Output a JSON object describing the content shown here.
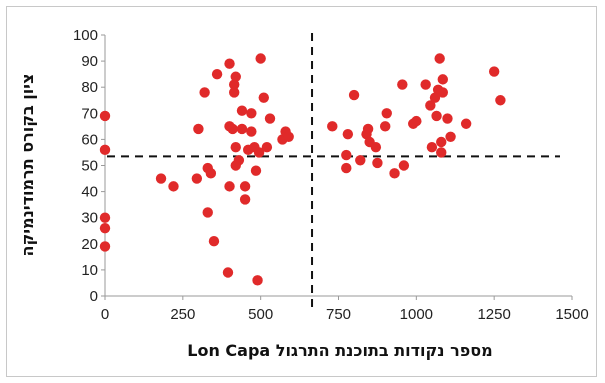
{
  "chart_data": {
    "type": "scatter",
    "title": "",
    "xlabel": "מספר נקודות בתוכנת התרגול Lon Capa",
    "ylabel": "ציון בקורס תרמודינמיקה",
    "xlim": [
      0,
      1500
    ],
    "ylim": [
      0,
      100
    ],
    "x_ticks": [
      "0",
      "250",
      "500",
      "750",
      "1000",
      "1250",
      "1500"
    ],
    "y_ticks": [
      "0",
      "10",
      "20",
      "30",
      "40",
      "50",
      "60",
      "70",
      "80",
      "90",
      "100"
    ],
    "grid": false,
    "legend": "none",
    "marker_color": "#e02a2a",
    "reference_lines": [
      {
        "orientation": "vertical",
        "x": 665
      },
      {
        "orientation": "horizontal",
        "y": 53.5
      }
    ],
    "points": [
      {
        "x": 0,
        "y": 69
      },
      {
        "x": 0,
        "y": 56
      },
      {
        "x": 0,
        "y": 30
      },
      {
        "x": 0,
        "y": 26
      },
      {
        "x": 0,
        "y": 19
      },
      {
        "x": 180,
        "y": 45
      },
      {
        "x": 220,
        "y": 42
      },
      {
        "x": 295,
        "y": 45
      },
      {
        "x": 300,
        "y": 64
      },
      {
        "x": 320,
        "y": 78
      },
      {
        "x": 330,
        "y": 32
      },
      {
        "x": 330,
        "y": 49
      },
      {
        "x": 340,
        "y": 47
      },
      {
        "x": 350,
        "y": 21
      },
      {
        "x": 360,
        "y": 85
      },
      {
        "x": 395,
        "y": 9
      },
      {
        "x": 400,
        "y": 89
      },
      {
        "x": 400,
        "y": 65
      },
      {
        "x": 400,
        "y": 42
      },
      {
        "x": 410,
        "y": 64
      },
      {
        "x": 415,
        "y": 81
      },
      {
        "x": 415,
        "y": 78
      },
      {
        "x": 420,
        "y": 84
      },
      {
        "x": 420,
        "y": 57
      },
      {
        "x": 420,
        "y": 50
      },
      {
        "x": 430,
        "y": 52
      },
      {
        "x": 440,
        "y": 71
      },
      {
        "x": 440,
        "y": 64
      },
      {
        "x": 450,
        "y": 42
      },
      {
        "x": 450,
        "y": 37
      },
      {
        "x": 460,
        "y": 56
      },
      {
        "x": 470,
        "y": 70
      },
      {
        "x": 470,
        "y": 63
      },
      {
        "x": 480,
        "y": 57
      },
      {
        "x": 485,
        "y": 48
      },
      {
        "x": 490,
        "y": 6
      },
      {
        "x": 495,
        "y": 55
      },
      {
        "x": 500,
        "y": 91
      },
      {
        "x": 510,
        "y": 76
      },
      {
        "x": 520,
        "y": 57
      },
      {
        "x": 530,
        "y": 68
      },
      {
        "x": 570,
        "y": 60
      },
      {
        "x": 580,
        "y": 63
      },
      {
        "x": 590,
        "y": 61
      },
      {
        "x": 730,
        "y": 65
      },
      {
        "x": 775,
        "y": 54
      },
      {
        "x": 775,
        "y": 49
      },
      {
        "x": 780,
        "y": 62
      },
      {
        "x": 800,
        "y": 77
      },
      {
        "x": 820,
        "y": 52
      },
      {
        "x": 840,
        "y": 62
      },
      {
        "x": 845,
        "y": 64
      },
      {
        "x": 850,
        "y": 59
      },
      {
        "x": 870,
        "y": 57
      },
      {
        "x": 875,
        "y": 51
      },
      {
        "x": 900,
        "y": 65
      },
      {
        "x": 905,
        "y": 70
      },
      {
        "x": 930,
        "y": 47
      },
      {
        "x": 955,
        "y": 81
      },
      {
        "x": 960,
        "y": 50
      },
      {
        "x": 990,
        "y": 66
      },
      {
        "x": 1000,
        "y": 67
      },
      {
        "x": 1030,
        "y": 81
      },
      {
        "x": 1045,
        "y": 73
      },
      {
        "x": 1050,
        "y": 57
      },
      {
        "x": 1060,
        "y": 76
      },
      {
        "x": 1065,
        "y": 69
      },
      {
        "x": 1070,
        "y": 79
      },
      {
        "x": 1075,
        "y": 91
      },
      {
        "x": 1080,
        "y": 59
      },
      {
        "x": 1080,
        "y": 55
      },
      {
        "x": 1085,
        "y": 83
      },
      {
        "x": 1085,
        "y": 78
      },
      {
        "x": 1100,
        "y": 68
      },
      {
        "x": 1110,
        "y": 61
      },
      {
        "x": 1160,
        "y": 66
      },
      {
        "x": 1250,
        "y": 86
      },
      {
        "x": 1270,
        "y": 75
      }
    ]
  }
}
